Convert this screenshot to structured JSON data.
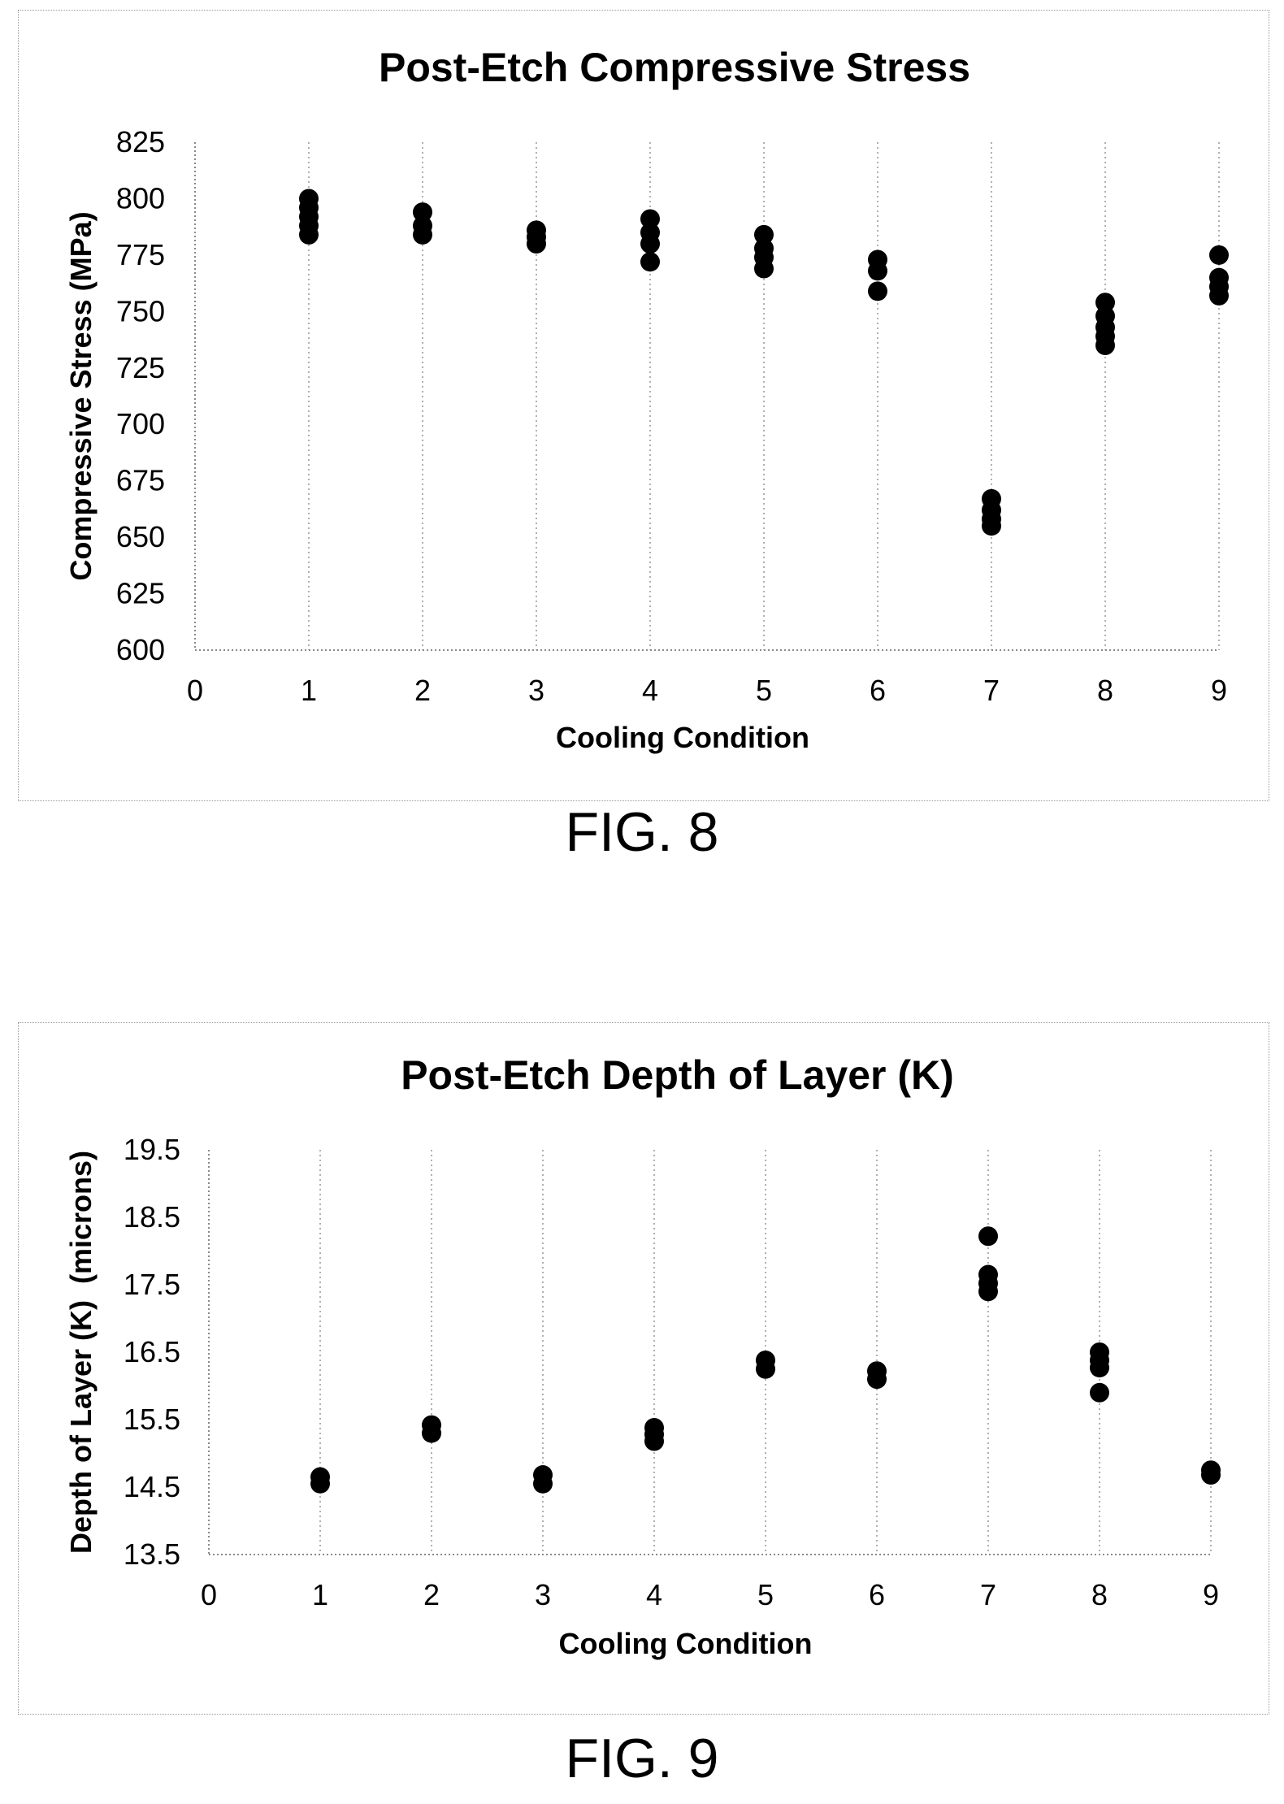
{
  "figure_labels": [
    "FIG. 8",
    "FIG. 9"
  ],
  "chart_data": [
    {
      "type": "scatter",
      "title": "Post-Etch Compressive Stress",
      "xlabel": "Cooling Condition",
      "ylabel": "Compressive Stress (MPa)",
      "xlim": [
        0,
        9
      ],
      "ylim": [
        600,
        825
      ],
      "xticks": [
        "0",
        "1",
        "2",
        "3",
        "4",
        "5",
        "6",
        "7",
        "8",
        "9"
      ],
      "yticks": [
        "600",
        "625",
        "650",
        "675",
        "700",
        "725",
        "750",
        "775",
        "800",
        "825"
      ],
      "grid": "vertical dotted",
      "marker_color": "#000000",
      "points": [
        {
          "x": 1,
          "y": 800
        },
        {
          "x": 1,
          "y": 796
        },
        {
          "x": 1,
          "y": 792
        },
        {
          "x": 1,
          "y": 788
        },
        {
          "x": 1,
          "y": 784
        },
        {
          "x": 2,
          "y": 794
        },
        {
          "x": 2,
          "y": 788
        },
        {
          "x": 2,
          "y": 784
        },
        {
          "x": 3,
          "y": 786
        },
        {
          "x": 3,
          "y": 783
        },
        {
          "x": 3,
          "y": 780
        },
        {
          "x": 4,
          "y": 791
        },
        {
          "x": 4,
          "y": 785
        },
        {
          "x": 4,
          "y": 780
        },
        {
          "x": 4,
          "y": 772
        },
        {
          "x": 5,
          "y": 784
        },
        {
          "x": 5,
          "y": 778
        },
        {
          "x": 5,
          "y": 774
        },
        {
          "x": 5,
          "y": 769
        },
        {
          "x": 6,
          "y": 773
        },
        {
          "x": 6,
          "y": 768
        },
        {
          "x": 6,
          "y": 759
        },
        {
          "x": 7,
          "y": 667
        },
        {
          "x": 7,
          "y": 662
        },
        {
          "x": 7,
          "y": 658
        },
        {
          "x": 7,
          "y": 655
        },
        {
          "x": 8,
          "y": 754
        },
        {
          "x": 8,
          "y": 748
        },
        {
          "x": 8,
          "y": 743
        },
        {
          "x": 8,
          "y": 739
        },
        {
          "x": 8,
          "y": 735
        },
        {
          "x": 9,
          "y": 775
        },
        {
          "x": 9,
          "y": 765
        },
        {
          "x": 9,
          "y": 761
        },
        {
          "x": 9,
          "y": 757
        }
      ]
    },
    {
      "type": "scatter",
      "title": "Post-Etch Depth of Layer (K)",
      "xlabel": "Cooling Condition",
      "ylabel": "Depth of Layer (K)  (microns)",
      "xlim": [
        0,
        9
      ],
      "ylim": [
        13.5,
        19.5
      ],
      "xticks": [
        "0",
        "1",
        "2",
        "3",
        "4",
        "5",
        "6",
        "7",
        "8",
        "9"
      ],
      "yticks": [
        "13.5",
        "14.5",
        "15.5",
        "16.5",
        "17.5",
        "18.5",
        "19.5"
      ],
      "grid": "vertical dotted",
      "marker_color": "#000000",
      "points": [
        {
          "x": 1,
          "y": 14.65
        },
        {
          "x": 1,
          "y": 14.55
        },
        {
          "x": 2,
          "y": 15.42
        },
        {
          "x": 2,
          "y": 15.3
        },
        {
          "x": 3,
          "y": 14.68
        },
        {
          "x": 3,
          "y": 14.55
        },
        {
          "x": 4,
          "y": 15.38
        },
        {
          "x": 4,
          "y": 15.28
        },
        {
          "x": 4,
          "y": 15.18
        },
        {
          "x": 5,
          "y": 16.38
        },
        {
          "x": 5,
          "y": 16.25
        },
        {
          "x": 6,
          "y": 16.22
        },
        {
          "x": 6,
          "y": 16.1
        },
        {
          "x": 7,
          "y": 18.22
        },
        {
          "x": 7,
          "y": 17.65
        },
        {
          "x": 7,
          "y": 17.52
        },
        {
          "x": 7,
          "y": 17.4
        },
        {
          "x": 8,
          "y": 16.5
        },
        {
          "x": 8,
          "y": 16.38
        },
        {
          "x": 8,
          "y": 16.27
        },
        {
          "x": 8,
          "y": 15.9
        },
        {
          "x": 9,
          "y": 14.75
        },
        {
          "x": 9,
          "y": 14.68
        }
      ]
    }
  ]
}
